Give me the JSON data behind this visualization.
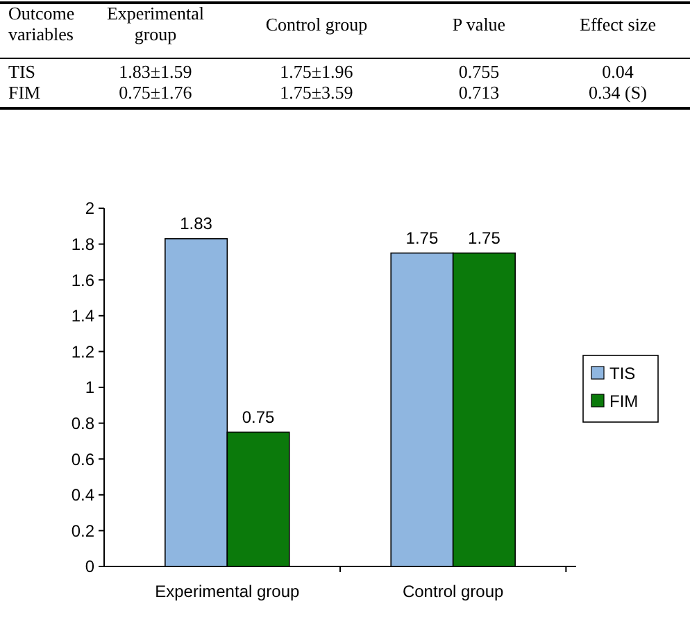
{
  "chart_data": [
    {
      "type": "other",
      "annotations": [
        "Outcome variables",
        "Experimental group",
        "Control group",
        "P value",
        "Effect size",
        "TIS",
        "1.83±1.59",
        "1.75±1.96",
        "0.755",
        "0.04",
        "FIM",
        "0.75±1.76",
        "1.75±3.59",
        "0.713",
        "0.34 (S)"
      ]
    },
    {
      "type": "bar",
      "categories": [
        "Experimental group",
        "Control group"
      ],
      "series": [
        {
          "name": "TIS",
          "color": "#8fb6e0",
          "values": [
            1.83,
            1.75
          ]
        },
        {
          "name": "FIM",
          "color": "#0b7a0b",
          "values": [
            0.75,
            1.75
          ]
        }
      ],
      "ylim": [
        0,
        2
      ],
      "yticks": [
        0,
        0.2,
        0.4,
        0.6,
        0.8,
        1,
        1.2,
        1.4,
        1.6,
        1.8,
        2
      ],
      "data_labels": true,
      "legend": "right",
      "grid": false
    }
  ]
}
